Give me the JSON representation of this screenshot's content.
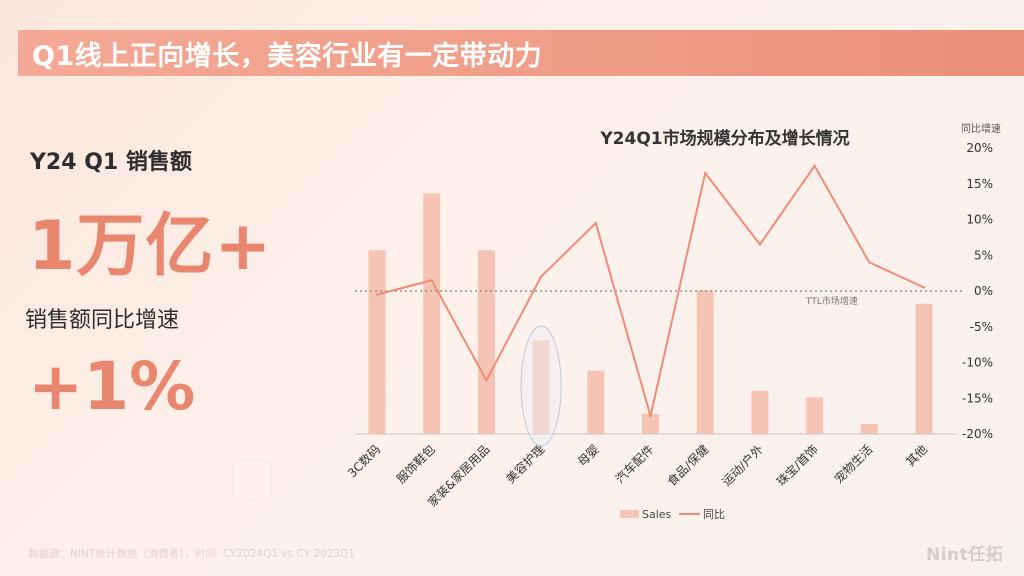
{
  "header": {
    "title": "Q1线上正向增长，美容行业有一定带动力"
  },
  "kpis": {
    "sales_label": "Y24 Q1 销售额",
    "sales_value": "1万亿+",
    "growth_label": "销售额同比增速",
    "growth_value": "+1%"
  },
  "chart_data": {
    "type": "bar",
    "title": "Y24Q1市场规模分布及增长情况",
    "right_axis_label": "同比增速",
    "categories": [
      "3C数码",
      "服饰鞋包",
      "家装&家居用品",
      "美容护理",
      "母婴",
      "汽车配件",
      "食品/保健",
      "运动/户外",
      "珠宝/首饰",
      "宠物生活",
      "其他"
    ],
    "series": [
      {
        "name": "Sales",
        "kind": "bar",
        "values": [
          5.5,
          7.2,
          5.5,
          2.8,
          1.9,
          0.6,
          4.3,
          1.3,
          1.1,
          0.3,
          3.9
        ]
      },
      {
        "name": "同比",
        "kind": "line",
        "axis": "right",
        "values": [
          -0.5,
          1.5,
          -12.5,
          2.0,
          9.5,
          -17.5,
          16.5,
          6.5,
          17.5,
          4.0,
          0.5
        ]
      }
    ],
    "right_ticks": [
      "20%",
      "15%",
      "10%",
      "5%",
      "0%",
      "-5%",
      "-10%",
      "-15%",
      "-20%"
    ],
    "right_ylim": [
      -20,
      20
    ],
    "bars_ylim": [
      0,
      8.5
    ],
    "reference_line": {
      "label": "TTL市场增速",
      "value": 0
    },
    "legend": [
      "Sales",
      "同比"
    ],
    "legend_position": "bottom",
    "highlighted_category": "美容护理"
  },
  "colors": {
    "bar": "#f5c4b4",
    "line": "#ee8d77",
    "accent": "#e9866f"
  },
  "footer": {
    "source": "数据源：NINT统计数据（消费者），时间: CY2024Q1 vs CY 2023Q1",
    "logo": "Nint任拓"
  }
}
